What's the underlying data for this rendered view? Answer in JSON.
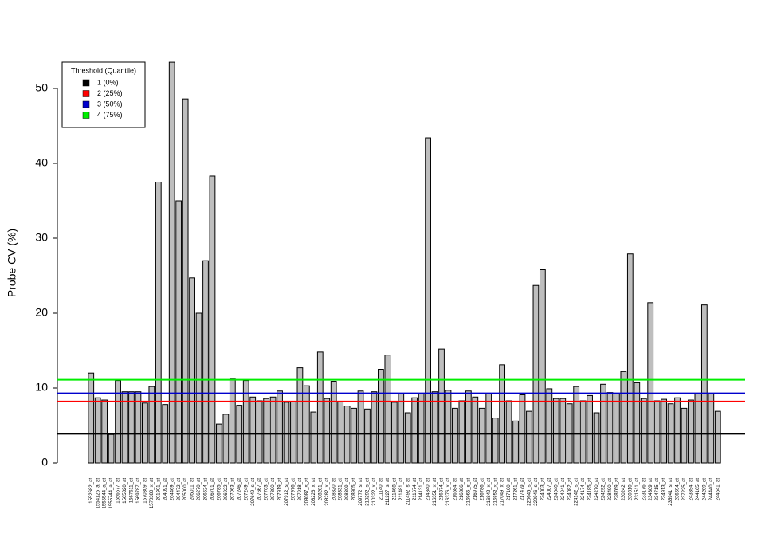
{
  "chart_data": {
    "type": "bar",
    "y_label": "Probe CV (%)",
    "categories": [
      "1552682_at",
      "1554125_a_at",
      "1555544_a_at",
      "1555744_a_at",
      "1556677_at",
      "1565320_at",
      "1567611_at",
      "1569787_at",
      "1570309_at",
      "1570380_x_at",
      "201901_at",
      "204091_at",
      "204469_at",
      "204472_at",
      "205000_at",
      "205011_at",
      "206270_at",
      "206624_at",
      "206701_at",
      "206785_at",
      "206922_at",
      "207063_at",
      "207246_at",
      "207249_at",
      "207649_s_at",
      "207667_at",
      "207703_at",
      "207890_at",
      "207919_at",
      "207912_s_at",
      "207976_at",
      "207918_at",
      "208087_s_at",
      "208226_x_at",
      "208281_at",
      "208282_x_at",
      "208320_at",
      "208331_at",
      "208309_at",
      "208905_at",
      "209772_s_at",
      "210292_s_at",
      "210322_x_at",
      "211140_at",
      "211227_s_at",
      "211468_at",
      "211481_at",
      "211492_s_at",
      "211674_at",
      "214131_at",
      "214840_at",
      "216351_x_at",
      "216374_at",
      "216376_x_at",
      "216584_at",
      "216886_at",
      "216965_s_at",
      "216975_at",
      "216786_at",
      "216842_x_at",
      "216852_x_at",
      "217049_x_at",
      "217160_at",
      "217261_at",
      "217479_at",
      "220645_s_at",
      "220946_s_at",
      "224003_at",
      "224007_at",
      "224040_at",
      "224041_at",
      "224082_at",
      "224142_s_at",
      "224174_at",
      "224185_at",
      "224270_at",
      "224292_at",
      "228490_at",
      "228769_at",
      "230242_at",
      "230810_at",
      "231511_at",
      "233176_at",
      "234309_at",
      "234715_at",
      "234913_at",
      "235941_s_at",
      "236694_at",
      "237225_at",
      "243394_at",
      "244165_at",
      "244289_at",
      "244440_at",
      "244641_at"
    ],
    "values": [
      12.0,
      8.7,
      8.4,
      3.8,
      11.0,
      9.5,
      9.5,
      9.5,
      8.0,
      10.2,
      37.5,
      7.8,
      53.5,
      35.0,
      48.6,
      24.7,
      20.0,
      27.0,
      38.3,
      5.2,
      6.5,
      11.2,
      7.7,
      11.0,
      8.8,
      8.3,
      8.6,
      8.8,
      9.6,
      8.1,
      8.2,
      12.7,
      10.3,
      6.8,
      14.8,
      8.6,
      10.9,
      8.2,
      7.6,
      7.3,
      9.6,
      7.2,
      9.5,
      12.5,
      14.4,
      8.1,
      9.3,
      6.7,
      8.7,
      9.3,
      43.4,
      9.5,
      15.2,
      9.7,
      7.3,
      8.3,
      9.6,
      8.8,
      7.3,
      9.3,
      6.0,
      13.1,
      8.3,
      5.6,
      9.1,
      6.9,
      23.7,
      25.8,
      9.9,
      8.6,
      8.6,
      7.9,
      10.2,
      8.3,
      9.0,
      6.7,
      10.5,
      9.4,
      9.3,
      12.2,
      27.9,
      10.7,
      8.6,
      21.4,
      8.3,
      8.5,
      7.9,
      8.7,
      7.3,
      8.4,
      9.3,
      21.1,
      9.3,
      6.9
    ],
    "color": "#bebebe",
    "ylim": [
      0,
      55
    ],
    "yticks": [
      0,
      10,
      20,
      30,
      40,
      50
    ],
    "legend_title": "Threshold (Quantile)",
    "legend_position": "top-left",
    "thresholds": [
      {
        "name": "1 (0%)",
        "value": 3.9,
        "color": "#000000"
      },
      {
        "name": "2 (25%)",
        "value": 8.2,
        "color": "#ff0000"
      },
      {
        "name": "3 (50%)",
        "value": 9.3,
        "color": "#0000cd"
      },
      {
        "name": "4 (75%)",
        "value": 11.1,
        "color": "#00ee00"
      }
    ]
  }
}
